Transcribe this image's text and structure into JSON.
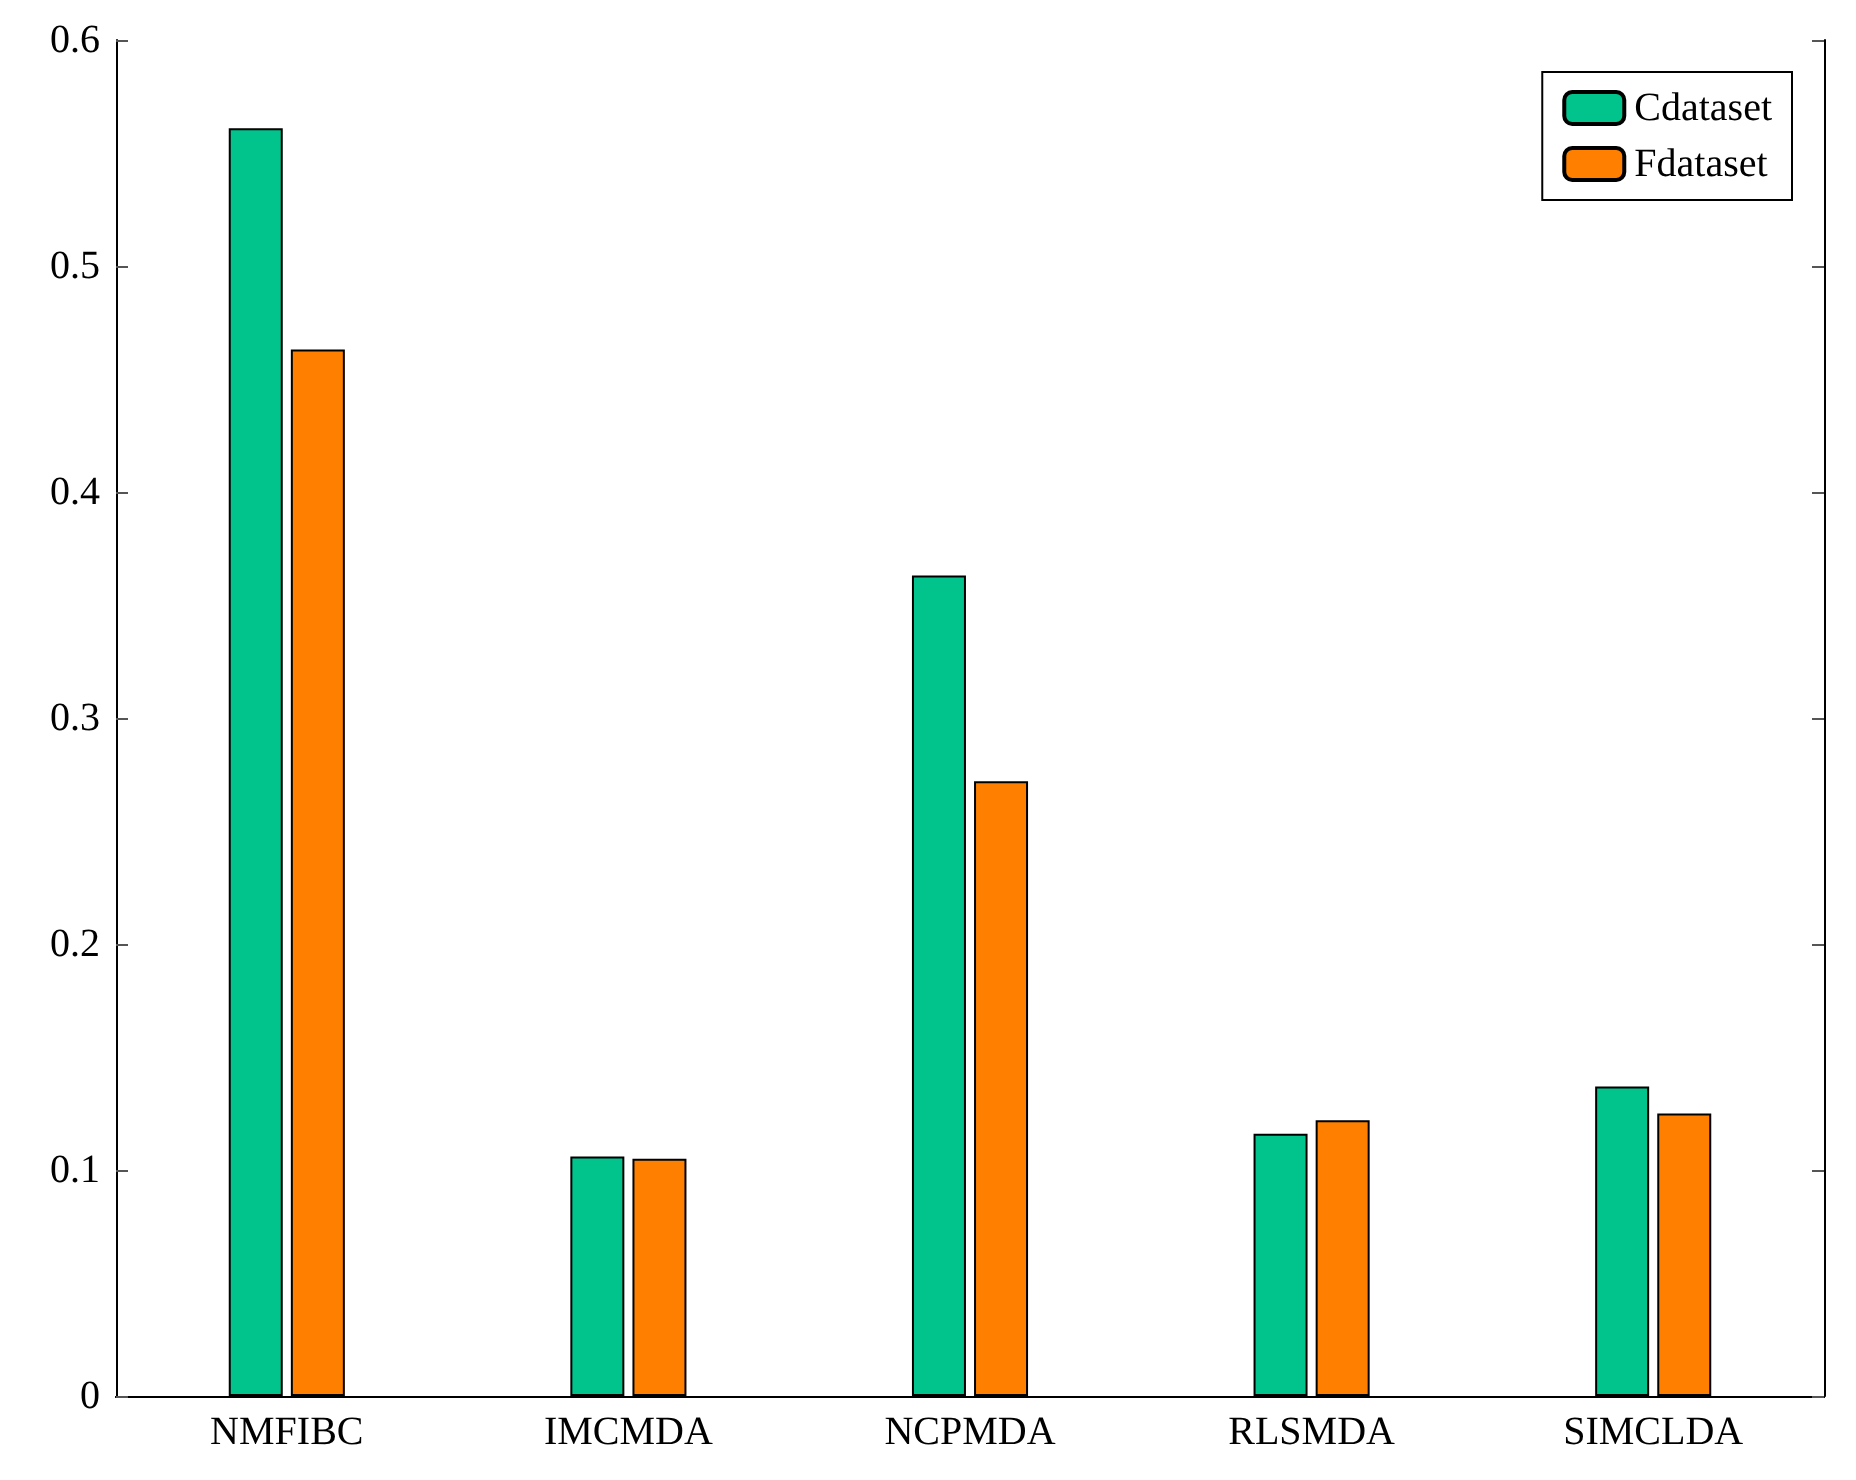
{
  "chart_data": {
    "type": "bar",
    "categories": [
      "NMFIBC",
      "IMCMDA",
      "NCPMDA",
      "RLSMDA",
      "SIMCLDA"
    ],
    "series": [
      {
        "name": "Cdataset",
        "color": "#00c48c",
        "values": [
          0.561,
          0.106,
          0.363,
          0.116,
          0.137
        ]
      },
      {
        "name": "Fdataset",
        "color": "#ff8000",
        "values": [
          0.463,
          0.105,
          0.272,
          0.122,
          0.125
        ]
      }
    ],
    "ylim": [
      0,
      0.6
    ],
    "yticks": [
      0,
      0.1,
      0.2,
      0.3,
      0.4,
      0.5,
      0.6
    ],
    "grid": false,
    "legend": "top right"
  }
}
